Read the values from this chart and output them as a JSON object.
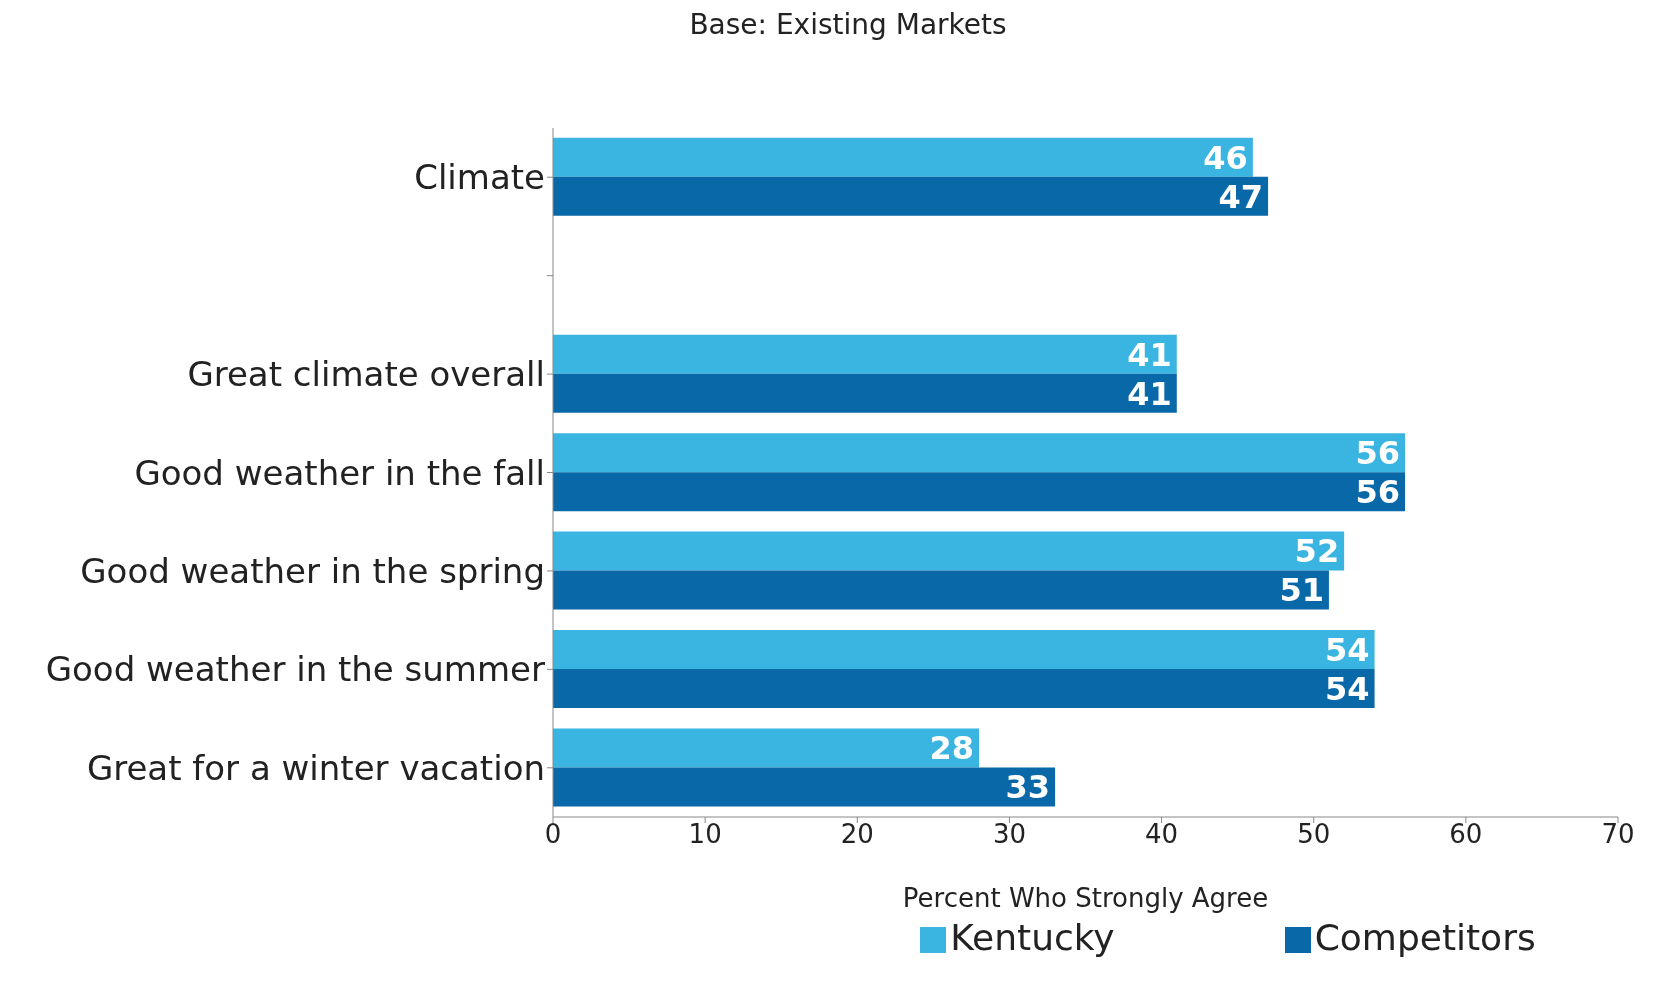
{
  "chart_data": {
    "type": "bar",
    "orientation": "horizontal",
    "title": "Base: Existing Markets",
    "xlabel": "Percent Who Strongly Agree",
    "categories": [
      "Climate",
      null,
      "Great climate overall",
      "Good weather in the fall",
      "Good weather in the spring",
      "Good weather in the summer",
      "Great for a winter vacation"
    ],
    "series": [
      {
        "name": "Kentucky",
        "color": "#3ab4e0",
        "values": [
          46,
          null,
          41,
          56,
          52,
          54,
          28
        ]
      },
      {
        "name": "Competitors",
        "color": "#0868a8",
        "values": [
          47,
          null,
          41,
          56,
          51,
          54,
          33
        ]
      }
    ],
    "xlim": [
      0,
      70
    ],
    "xticks": [
      0,
      10,
      20,
      30,
      40,
      50,
      60,
      70
    ],
    "data_labels": true,
    "legend": "bottom",
    "grid": false
  }
}
